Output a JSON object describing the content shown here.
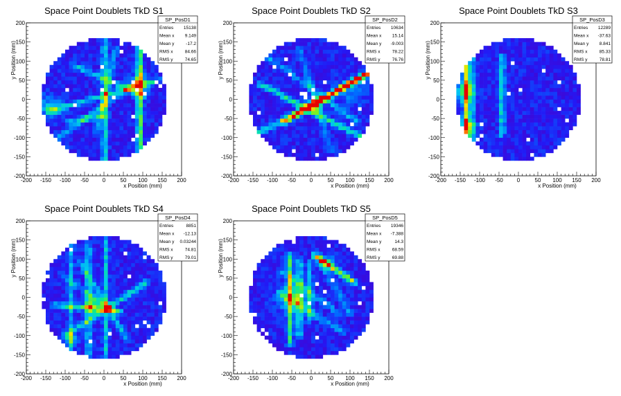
{
  "chart_data": [
    {
      "type": "heatmap",
      "title": "Space Point Doublets TkD S1",
      "xlabel": "x Position (mm)",
      "ylabel": "y Position (mm)",
      "xlim": [
        -200,
        200
      ],
      "ylim": [
        -200,
        200
      ],
      "xticks": [
        "-200",
        "-150",
        "-100",
        "-50",
        "0",
        "50",
        "100",
        "150",
        "200"
      ],
      "yticks": [
        "-200",
        "-150",
        "-100",
        "-50",
        "0",
        "50",
        "100",
        "150",
        "200"
      ],
      "stats": {
        "name": "SP_PosD1",
        "rows": [
          {
            "label": "Entries",
            "value": "15138"
          },
          {
            "label": "Mean x",
            "value": "9.149"
          },
          {
            "label": "Mean y",
            "value": "-17.2"
          },
          {
            "label": "RMS x",
            "value": "84.66"
          },
          {
            "label": "RMS y",
            "value": "74.65"
          }
        ]
      },
      "detector_radius": 160,
      "features": {
        "lines": [
          {
            "x1": 92,
            "y1": 150,
            "x2": 92,
            "y2": -140,
            "intensity": 0.55
          },
          {
            "x1": 2,
            "y1": 160,
            "x2": 2,
            "y2": -160,
            "intensity": 0.35
          },
          {
            "x1": -80,
            "y1": 90,
            "x2": 100,
            "y2": 10,
            "intensity": 0.3
          },
          {
            "x1": -140,
            "y1": -30,
            "x2": 140,
            "y2": 50,
            "intensity": 0.3
          },
          {
            "x1": -120,
            "y1": -100,
            "x2": 80,
            "y2": 40,
            "intensity": 0.25
          },
          {
            "x1": -20,
            "y1": -90,
            "x2": 30,
            "y2": 130,
            "intensity": 0.25
          },
          {
            "x1": -90,
            "y1": -60,
            "x2": 10,
            "y2": -40,
            "intensity": 0.25
          }
        ],
        "blobs": [
          {
            "x": -135,
            "y": -20,
            "r": 30,
            "intensity": 0.3
          },
          {
            "x": -120,
            "y": -150,
            "r": 30,
            "intensity": 0.15
          },
          {
            "x": 92,
            "y": 40,
            "r": 25,
            "intensity": 0.4
          }
        ]
      }
    },
    {
      "type": "heatmap",
      "title": "Space Point Doublets TkD S2",
      "xlabel": "x Position (mm)",
      "ylabel": "y Position (mm)",
      "xlim": [
        -200,
        200
      ],
      "ylim": [
        -200,
        200
      ],
      "xticks": [
        "-200",
        "-150",
        "-100",
        "-50",
        "0",
        "50",
        "100",
        "150",
        "200"
      ],
      "yticks": [
        "-200",
        "-150",
        "-100",
        "-50",
        "0",
        "50",
        "100",
        "150",
        "200"
      ],
      "stats": {
        "name": "SP_PosD2",
        "rows": [
          {
            "label": "Entries",
            "value": "10634"
          },
          {
            "label": "Mean x",
            "value": "15.14"
          },
          {
            "label": "Mean y",
            "value": "-9.003"
          },
          {
            "label": "RMS x",
            "value": "78.22"
          },
          {
            "label": "RMS y",
            "value": "76.76"
          }
        ]
      },
      "detector_radius": 160,
      "features": {
        "lines": [
          {
            "x1": -70,
            "y1": -60,
            "x2": 140,
            "y2": 65,
            "intensity": 0.65
          },
          {
            "x1": -130,
            "y1": 40,
            "x2": 150,
            "y2": -110,
            "intensity": 0.4
          },
          {
            "x1": -140,
            "y1": -90,
            "x2": 150,
            "y2": 70,
            "intensity": 0.35
          },
          {
            "x1": -110,
            "y1": 110,
            "x2": 120,
            "y2": -60,
            "intensity": 0.25
          },
          {
            "x1": -30,
            "y1": 130,
            "x2": 50,
            "y2": -130,
            "intensity": 0.2
          }
        ],
        "blobs": [
          {
            "x": 10,
            "y": -15,
            "r": 20,
            "intensity": 0.4
          },
          {
            "x": 100,
            "y": 20,
            "r": 40,
            "intensity": 0.15
          }
        ]
      }
    },
    {
      "type": "heatmap",
      "title": "Space Point Doublets TkD S3",
      "xlabel": "x Position (mm)",
      "ylabel": "y Position (mm)",
      "xlim": [
        -200,
        200
      ],
      "ylim": [
        -200,
        200
      ],
      "xticks": [
        "-200",
        "-150",
        "-100",
        "-50",
        "0",
        "50",
        "100",
        "150",
        "200"
      ],
      "yticks": [
        "-200",
        "-150",
        "-100",
        "-50",
        "0",
        "50",
        "100",
        "150",
        "200"
      ],
      "stats": {
        "name": "SP_PosD3",
        "rows": [
          {
            "label": "Entries",
            "value": "12289"
          },
          {
            "label": "Mean x",
            "value": "-37.63"
          },
          {
            "label": "Mean y",
            "value": "8.841"
          },
          {
            "label": "RMS x",
            "value": "85.33"
          },
          {
            "label": "RMS y",
            "value": "78.81"
          }
        ]
      },
      "detector_radius": 160,
      "features": {
        "lines": [
          {
            "x1": -135,
            "y1": 110,
            "x2": -135,
            "y2": -100,
            "intensity": 0.6
          },
          {
            "x1": -120,
            "y1": 120,
            "x2": -120,
            "y2": -120,
            "intensity": 0.3
          },
          {
            "x1": -42,
            "y1": 110,
            "x2": -42,
            "y2": -90,
            "intensity": 0.35
          }
        ],
        "blobs": [
          {
            "x": -140,
            "y": 20,
            "r": 25,
            "intensity": 0.4
          },
          {
            "x": -130,
            "y": -70,
            "r": 20,
            "intensity": 0.35
          },
          {
            "x": -150,
            "y": -110,
            "r": 20,
            "intensity": 0.2
          }
        ]
      }
    },
    {
      "type": "heatmap",
      "title": "Space Point Doublets TkD S4",
      "xlabel": "x Position (mm)",
      "ylabel": "y Position (mm)",
      "xlim": [
        -200,
        200
      ],
      "ylim": [
        -200,
        200
      ],
      "xticks": [
        "-200",
        "-150",
        "-100",
        "-50",
        "0",
        "50",
        "100",
        "150",
        "200"
      ],
      "yticks": [
        "-200",
        "-150",
        "-100",
        "-50",
        "0",
        "50",
        "100",
        "150",
        "200"
      ],
      "stats": {
        "name": "SP_PosD4",
        "rows": [
          {
            "label": "Entries",
            "value": "8851"
          },
          {
            "label": "Mean x",
            "value": "-12.13"
          },
          {
            "label": "Mean y",
            "value": "0.03244"
          },
          {
            "label": "RMS x",
            "value": "74.81"
          },
          {
            "label": "RMS y",
            "value": "79.01"
          }
        ]
      },
      "detector_radius": 160,
      "features": {
        "lines": [
          {
            "x1": -40,
            "y1": 140,
            "x2": -40,
            "y2": -150,
            "intensity": 0.3
          },
          {
            "x1": -85,
            "y1": 140,
            "x2": -85,
            "y2": -150,
            "intensity": 0.25
          },
          {
            "x1": 5,
            "y1": 150,
            "x2": 5,
            "y2": -150,
            "intensity": 0.3
          },
          {
            "x1": -130,
            "y1": -20,
            "x2": 40,
            "y2": -35,
            "intensity": 0.35
          },
          {
            "x1": -100,
            "y1": -100,
            "x2": 110,
            "y2": 40,
            "intensity": 0.35
          },
          {
            "x1": -60,
            "y1": 90,
            "x2": 60,
            "y2": -110,
            "intensity": 0.3
          },
          {
            "x1": -110,
            "y1": 60,
            "x2": 30,
            "y2": -40,
            "intensity": 0.2
          }
        ],
        "blobs": [
          {
            "x": -30,
            "y": -20,
            "r": 20,
            "intensity": 0.45
          },
          {
            "x": -85,
            "y": -110,
            "r": 15,
            "intensity": 0.3
          }
        ]
      }
    },
    {
      "type": "heatmap",
      "title": "Space Point Doublets TkD S5",
      "xlabel": "x Position (mm)",
      "ylabel": "y Position (mm)",
      "xlim": [
        -200,
        200
      ],
      "ylim": [
        -200,
        200
      ],
      "xticks": [
        "-200",
        "-150",
        "-100",
        "-50",
        "0",
        "50",
        "100",
        "150",
        "200"
      ],
      "yticks": [
        "-200",
        "-150",
        "-100",
        "-50",
        "0",
        "50",
        "100",
        "150",
        "200"
      ],
      "stats": {
        "name": "SP_PosD5",
        "rows": [
          {
            "label": "Entries",
            "value": "19346"
          },
          {
            "label": "Mean x",
            "value": "-7.388"
          },
          {
            "label": "Mean y",
            "value": "14.3"
          },
          {
            "label": "RMS x",
            "value": "68.59"
          },
          {
            "label": "RMS y",
            "value": "69.88"
          }
        ]
      },
      "detector_radius": 160,
      "features": {
        "lines": [
          {
            "x1": 10,
            "y1": 110,
            "x2": 110,
            "y2": 40,
            "intensity": 0.6
          },
          {
            "x1": -55,
            "y1": 110,
            "x2": -55,
            "y2": -120,
            "intensity": 0.45
          },
          {
            "x1": -30,
            "y1": 100,
            "x2": -30,
            "y2": -100,
            "intensity": 0.35
          },
          {
            "x1": -5,
            "y1": 90,
            "x2": -5,
            "y2": -60,
            "intensity": 0.25
          },
          {
            "x1": -80,
            "y1": 10,
            "x2": 80,
            "y2": -90,
            "intensity": 0.25
          },
          {
            "x1": -80,
            "y1": 70,
            "x2": 70,
            "y2": -40,
            "intensity": 0.2
          },
          {
            "x1": 20,
            "y1": 100,
            "x2": 100,
            "y2": -40,
            "intensity": 0.2
          }
        ],
        "blobs": [
          {
            "x": -45,
            "y": 0,
            "r": 40,
            "intensity": 0.35
          },
          {
            "x": 40,
            "y": 90,
            "r": 20,
            "intensity": 0.3
          }
        ]
      }
    }
  ]
}
